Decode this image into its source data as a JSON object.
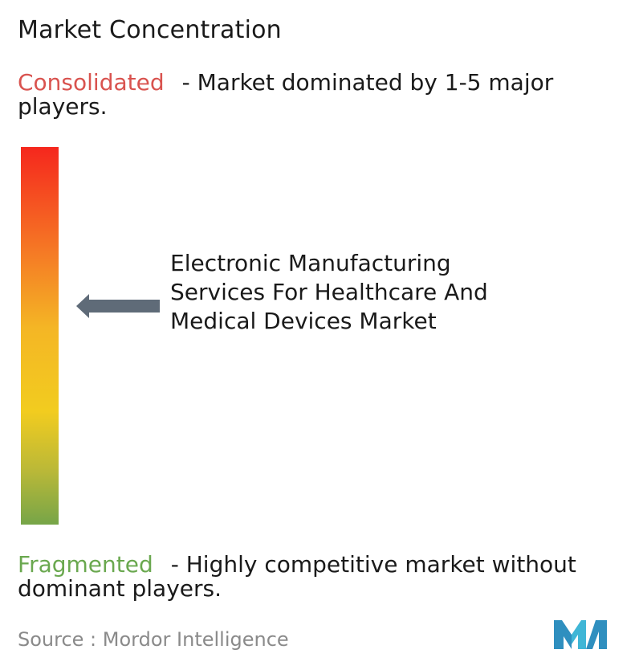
{
  "title": "Market Concentration",
  "consolidated": {
    "term": "Consolidated",
    "description": "- Market dominated by 1-5 major players."
  },
  "fragmented": {
    "term": "Fragmented",
    "description": "- Highly competitive market without dominant players."
  },
  "market_label": "Electronic Manufacturing Services For Healthcare And Medical Devices Market",
  "source": "Source :  Mordor Intelligence",
  "colors": {
    "consolidated": "#d9534f",
    "fragmented": "#6aa84f",
    "gradient_top": "#f5271d",
    "gradient_bottom": "#76a548",
    "arrow": "#5f6b78",
    "logo": "#3aa3c9"
  },
  "icons": {
    "pointer": "arrow-left-icon",
    "logo": "mordor-intelligence-logo"
  }
}
